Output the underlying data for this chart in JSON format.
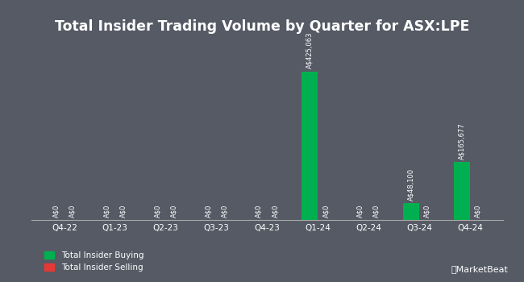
{
  "title": "Total Insider Trading Volume by Quarter for ASX:LPE",
  "quarters": [
    "Q4-22",
    "Q1-23",
    "Q2-23",
    "Q3-23",
    "Q4-23",
    "Q1-24",
    "Q2-24",
    "Q3-24",
    "Q4-24"
  ],
  "buying": [
    0,
    0,
    0,
    0,
    0,
    425063,
    0,
    48100,
    165677
  ],
  "selling": [
    0,
    0,
    0,
    0,
    0,
    0,
    0,
    0,
    0
  ],
  "buying_labels": [
    "A$0",
    "A$0",
    "A$0",
    "A$0",
    "A$0",
    "A$425,063",
    "A$0",
    "A$48,100",
    "A$165,677"
  ],
  "selling_labels": [
    "A$0",
    "A$0",
    "A$0",
    "A$0",
    "A$0",
    "A$0",
    "A$0",
    "A$0",
    "A$0"
  ],
  "buying_color": "#00b050",
  "selling_color": "#e53935",
  "background_color": "#555a65",
  "text_color": "#ffffff",
  "title_fontsize": 12.5,
  "label_fontsize": 6.0,
  "tick_fontsize": 7.5,
  "bar_width": 0.32,
  "ylim": [
    0,
    500000
  ],
  "legend_buying": "Total Insider Buying",
  "legend_selling": "Total Insider Selling"
}
